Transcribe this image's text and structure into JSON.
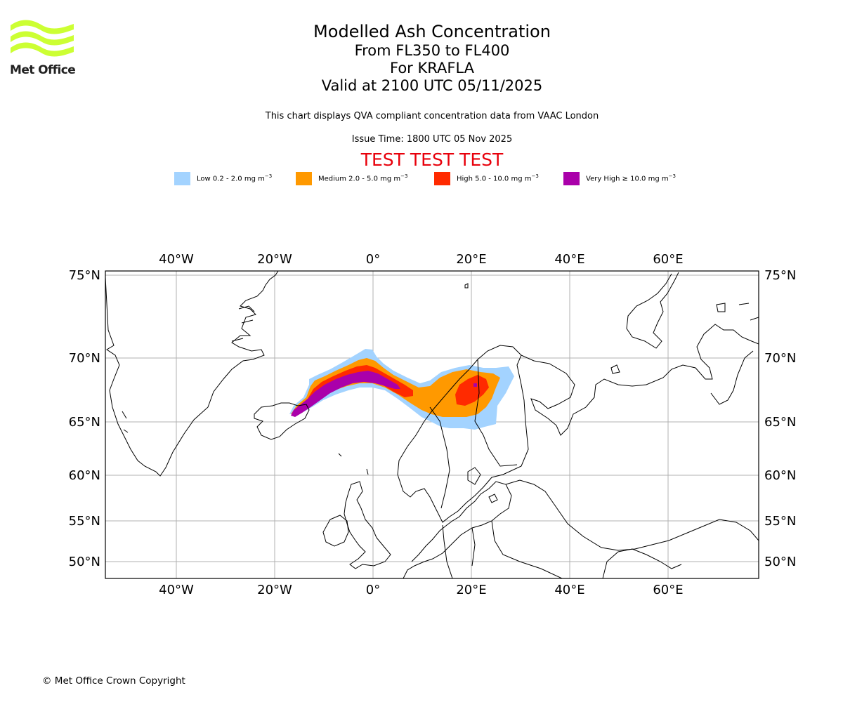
{
  "logo": {
    "name": "Met Office",
    "text": "Met Office",
    "color": "#ccff33"
  },
  "title": "Modelled Ash Concentration",
  "subtitle_levels": "From FL350 to FL400",
  "subtitle_volcano": "For KRAFLA",
  "subtitle_valid": "Valid at 2100 UTC 05/11/2025",
  "description": "This chart displays QVA compliant concentration data from VAAC London",
  "issue_time": "Issue Time: 1800 UTC 05 Nov 2025",
  "test_banner": "TEST TEST TEST",
  "legend": [
    {
      "label": "Low 0.2 - 2.0 mg m",
      "color": "#a3d3ff"
    },
    {
      "label": "Medium 2.0 - 5.0 mg m",
      "color": "#ff9900"
    },
    {
      "label": "High 5.0 - 10.0 mg m",
      "color": "#ff2a00"
    },
    {
      "label": "Very High ≥ 10.0 mg m",
      "color": "#aa00aa"
    }
  ],
  "legend_unit_exponent": "−3",
  "map": {
    "lon_ticks": [
      "40°W",
      "20°W",
      "0°",
      "20°E",
      "40°E",
      "60°E"
    ],
    "lat_ticks": [
      "75°N",
      "70°N",
      "65°N",
      "60°N",
      "55°N",
      "50°N"
    ],
    "grid_color": "#b0b0b0"
  },
  "copyright": "© Met Office Crown Copyright"
}
